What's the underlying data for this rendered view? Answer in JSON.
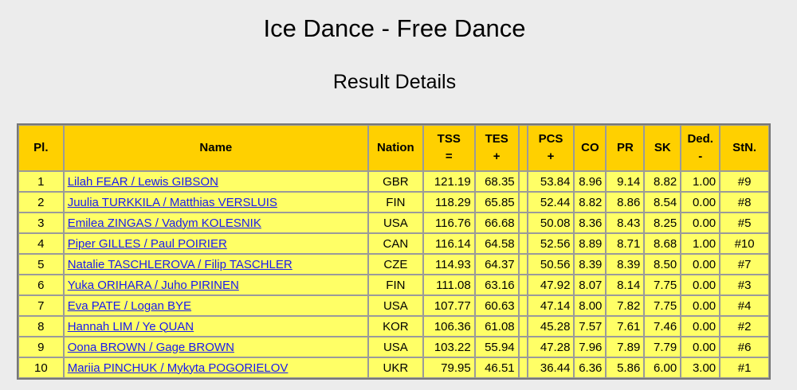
{
  "title": "Ice Dance - Free Dance",
  "subtitle": "Result Details",
  "headers": {
    "pl": "Pl.",
    "name": "Name",
    "nation": "Nation",
    "tss_top": "TSS",
    "tss_bottom": "=",
    "tes_top": "TES",
    "tes_bottom": "+",
    "pcs_top": "PCS",
    "pcs_bottom": "+",
    "co": "CO",
    "pr": "PR",
    "sk": "SK",
    "ded_top": "Ded.",
    "ded_bottom": "-",
    "stn": "StN."
  },
  "rows": [
    {
      "pl": "1",
      "name": "Lilah FEAR / Lewis GIBSON",
      "nation": "GBR",
      "tss": "121.19",
      "tes": "68.35",
      "pcs": "53.84",
      "co": "8.96",
      "pr": "9.14",
      "sk": "8.82",
      "ded": "1.00",
      "stn": "#9"
    },
    {
      "pl": "2",
      "name": "Juulia TURKKILA / Matthias VERSLUIS",
      "nation": "FIN",
      "tss": "118.29",
      "tes": "65.85",
      "pcs": "52.44",
      "co": "8.82",
      "pr": "8.86",
      "sk": "8.54",
      "ded": "0.00",
      "stn": "#8"
    },
    {
      "pl": "3",
      "name": "Emilea ZINGAS / Vadym KOLESNIK",
      "nation": "USA",
      "tss": "116.76",
      "tes": "66.68",
      "pcs": "50.08",
      "co": "8.36",
      "pr": "8.43",
      "sk": "8.25",
      "ded": "0.00",
      "stn": "#5"
    },
    {
      "pl": "4",
      "name": "Piper GILLES / Paul POIRIER",
      "nation": "CAN",
      "tss": "116.14",
      "tes": "64.58",
      "pcs": "52.56",
      "co": "8.89",
      "pr": "8.71",
      "sk": "8.68",
      "ded": "1.00",
      "stn": "#10"
    },
    {
      "pl": "5",
      "name": "Natalie TASCHLEROVA / Filip TASCHLER",
      "nation": "CZE",
      "tss": "114.93",
      "tes": "64.37",
      "pcs": "50.56",
      "co": "8.39",
      "pr": "8.39",
      "sk": "8.50",
      "ded": "0.00",
      "stn": "#7"
    },
    {
      "pl": "6",
      "name": "Yuka ORIHARA / Juho PIRINEN",
      "nation": "FIN",
      "tss": "111.08",
      "tes": "63.16",
      "pcs": "47.92",
      "co": "8.07",
      "pr": "8.14",
      "sk": "7.75",
      "ded": "0.00",
      "stn": "#3"
    },
    {
      "pl": "7",
      "name": "Eva PATE / Logan BYE",
      "nation": "USA",
      "tss": "107.77",
      "tes": "60.63",
      "pcs": "47.14",
      "co": "8.00",
      "pr": "7.82",
      "sk": "7.75",
      "ded": "0.00",
      "stn": "#4"
    },
    {
      "pl": "8",
      "name": "Hannah LIM / Ye QUAN",
      "nation": "KOR",
      "tss": "106.36",
      "tes": "61.08",
      "pcs": "45.28",
      "co": "7.57",
      "pr": "7.61",
      "sk": "7.46",
      "ded": "0.00",
      "stn": "#2"
    },
    {
      "pl": "9",
      "name": "Oona BROWN / Gage BROWN",
      "nation": "USA",
      "tss": "103.22",
      "tes": "55.94",
      "pcs": "47.28",
      "co": "7.96",
      "pr": "7.89",
      "sk": "7.79",
      "ded": "0.00",
      "stn": "#6"
    },
    {
      "pl": "10",
      "name": "Mariia PINCHUK / Mykyta POGORIELOV",
      "nation": "UKR",
      "tss": "79.95",
      "tes": "46.51",
      "pcs": "36.44",
      "co": "6.36",
      "pr": "5.86",
      "sk": "6.00",
      "ded": "3.00",
      "stn": "#1"
    }
  ]
}
